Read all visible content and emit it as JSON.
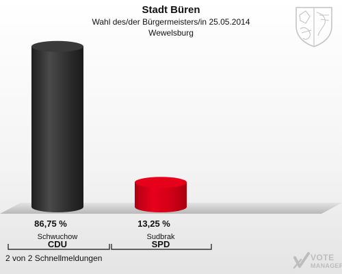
{
  "header": {
    "title": "Stadt Büren",
    "subtitle": "Wahl des/der Bürgermeisters/in  25.05.2014",
    "location": "Wewelsburg"
  },
  "chart_data": {
    "type": "bar",
    "categories": [
      "CDU",
      "SPD"
    ],
    "candidates": [
      "Schwuchow",
      "Sudbrak"
    ],
    "values": [
      86.75,
      13.25
    ],
    "value_labels": [
      "86,75 %",
      "13,25 %"
    ],
    "colors": [
      "#2b2b2b",
      "#d40016"
    ],
    "ylim": [
      0,
      100
    ],
    "grid": false
  },
  "footer": {
    "status": "2 von 2 Schnellmeldungen"
  },
  "branding": {
    "logo_line1": "VOTE",
    "logo_line2": "MANAGER"
  }
}
